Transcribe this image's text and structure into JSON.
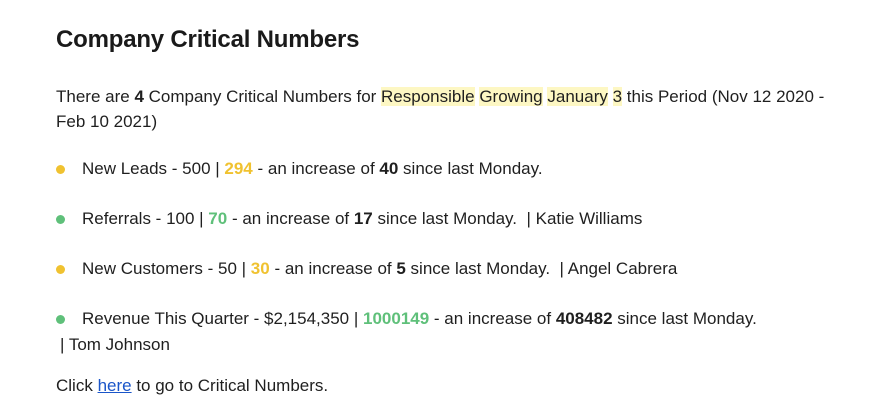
{
  "title": "Company Critical Numbers",
  "intro": {
    "prefix": "There are ",
    "count": "4",
    "middle": " Company Critical Numbers for ",
    "highlight_words": [
      "Responsible",
      "Growing",
      "January",
      "3"
    ],
    "suffix": " this Period (Nov 12 2020 - Feb 10 2021)"
  },
  "colors": {
    "yellow": "#f0c230",
    "green": "#5fc07a",
    "highlight": "#fdf7c3",
    "link": "#1a55c9"
  },
  "items": [
    {
      "status": "yellow",
      "label": "New Leads - 500 | ",
      "current": "294",
      "mid": " - an increase of ",
      "increase": "40",
      "tail": " since last Monday.",
      "owner": ""
    },
    {
      "status": "green",
      "label": "Referrals - 100 | ",
      "current": "70",
      "mid": " - an increase of ",
      "increase": "17",
      "tail": " since last Monday.",
      "owner": "  | Katie Williams"
    },
    {
      "status": "yellow",
      "label": "New Customers - 50 | ",
      "current": "30",
      "mid": " - an increase of ",
      "increase": "5",
      "tail": " since last Monday.",
      "owner": "  | Angel Cabrera"
    },
    {
      "status": "green",
      "label": "Revenue This Quarter - $2,154,350 | ",
      "current": "1000149",
      "mid": " - an increase of ",
      "increase": "408482",
      "tail": " since last Monday.",
      "owner": "| Tom Johnson"
    }
  ],
  "footer": {
    "prefix": "Click ",
    "link_text": "here",
    "suffix": " to go to Critical Numbers."
  }
}
